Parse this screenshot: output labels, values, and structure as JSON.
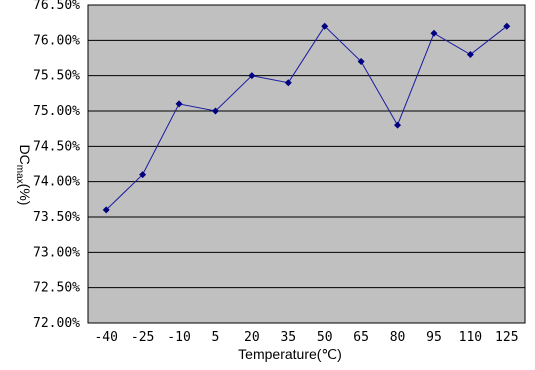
{
  "chart_data": {
    "type": "line",
    "x": [
      -40,
      -25,
      -10,
      5,
      20,
      35,
      50,
      65,
      80,
      95,
      110,
      125
    ],
    "x_tick_labels": [
      "-40",
      "-25",
      "-10",
      "5",
      "20",
      "35",
      "50",
      "65",
      "80",
      "95",
      "110",
      "125"
    ],
    "values": [
      73.6,
      74.1,
      75.1,
      75.0,
      75.5,
      75.4,
      76.2,
      75.7,
      74.8,
      76.1,
      75.8,
      76.2
    ],
    "y_tick_labels": [
      "72.00%",
      "72.50%",
      "73.00%",
      "73.50%",
      "74.00%",
      "74.50%",
      "75.00%",
      "75.50%",
      "76.00%",
      "76.50%"
    ],
    "ylim": [
      72.0,
      76.5
    ],
    "y_step": 0.5,
    "xlabel": "Temperature(℃)",
    "ylabel_main": "DC",
    "ylabel_sub": "max",
    "ylabel_unit": "(%)",
    "grid": true,
    "colors": {
      "plot_background": "#c0c0c0",
      "line": "#1a1aa0",
      "marker": "#000080",
      "gridline": "#000000"
    }
  }
}
